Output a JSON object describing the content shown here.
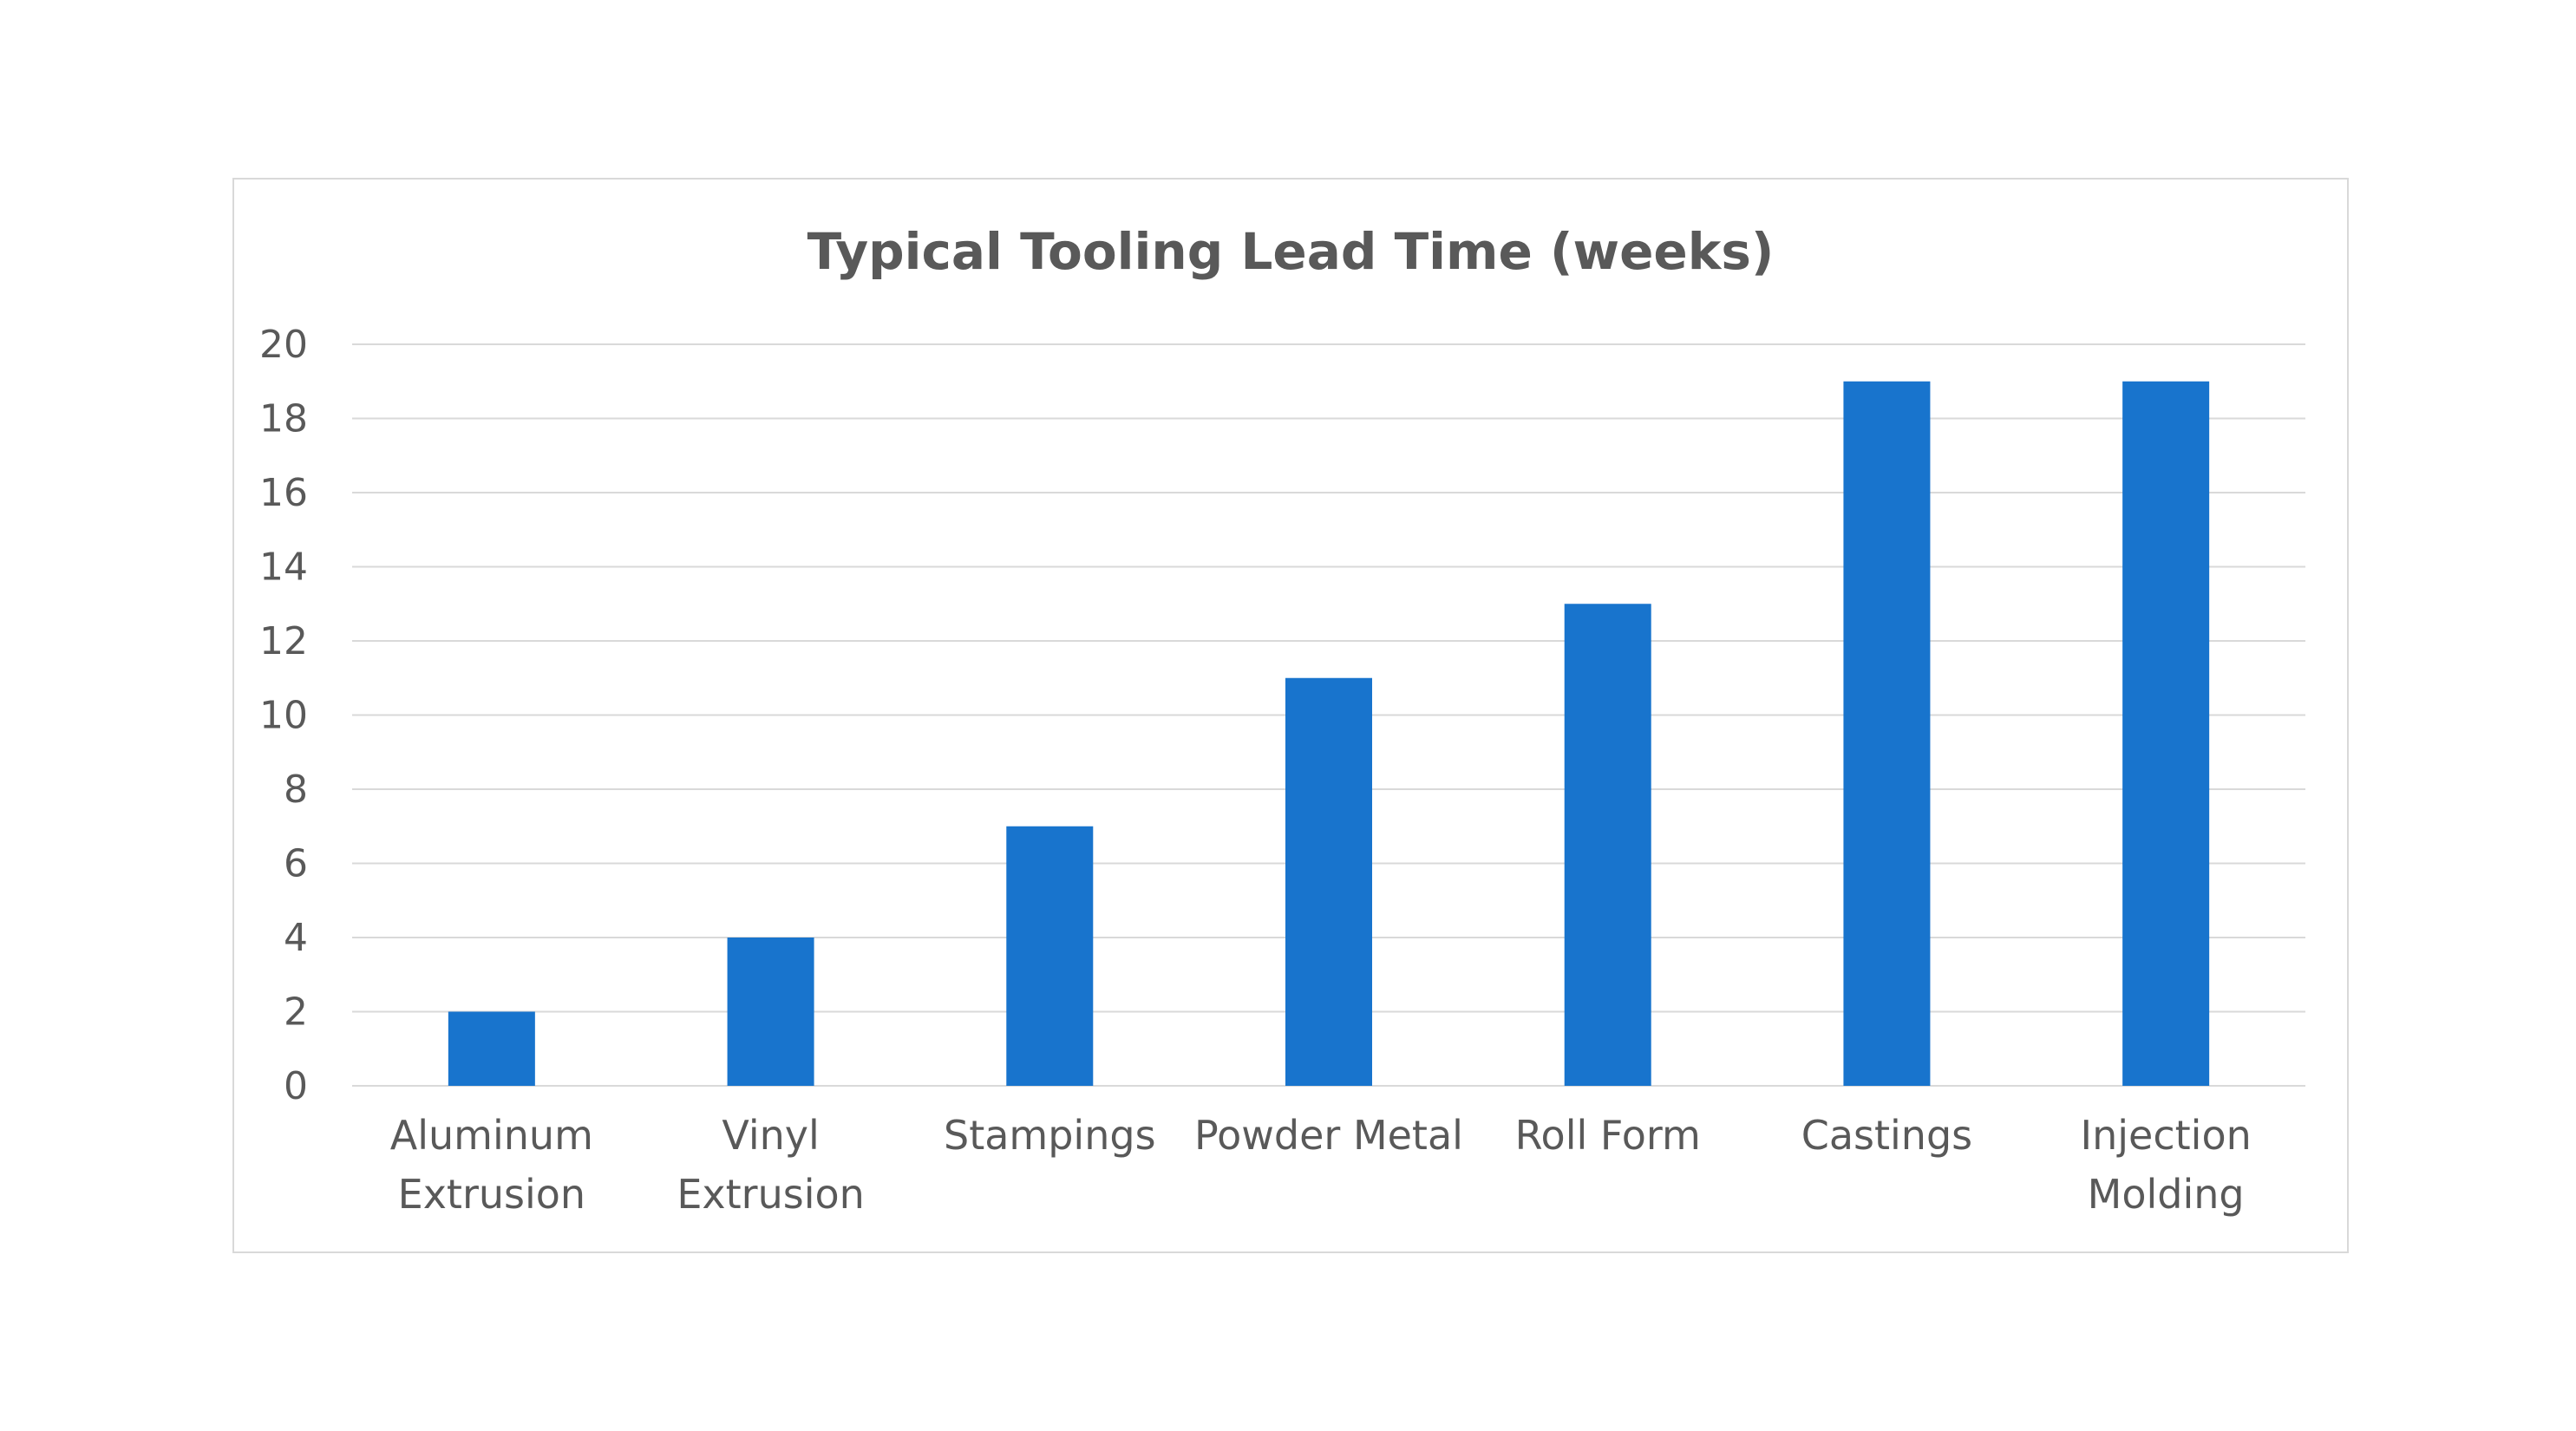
{
  "chart_data": {
    "type": "bar",
    "title": "Typical Tooling Lead Time (weeks)",
    "xlabel": "",
    "ylabel": "",
    "categories": [
      [
        "Aluminum",
        "Extrusion"
      ],
      [
        "Vinyl",
        "Extrusion"
      ],
      [
        "Stampings"
      ],
      [
        "Powder Metal"
      ],
      [
        "Roll Form"
      ],
      [
        "Castings"
      ],
      [
        "Injection",
        "Molding"
      ]
    ],
    "values": [
      2,
      4,
      7,
      11,
      13,
      19,
      19
    ],
    "ylim": [
      0,
      20
    ],
    "yticks": [
      0,
      2,
      4,
      6,
      8,
      10,
      12,
      14,
      16,
      18,
      20
    ],
    "grid": true,
    "legend": "none",
    "colors": {
      "bar": "#1874cd",
      "grid": "#d9d9d9",
      "text": "#595959",
      "frame": "#d9d9d9"
    }
  }
}
